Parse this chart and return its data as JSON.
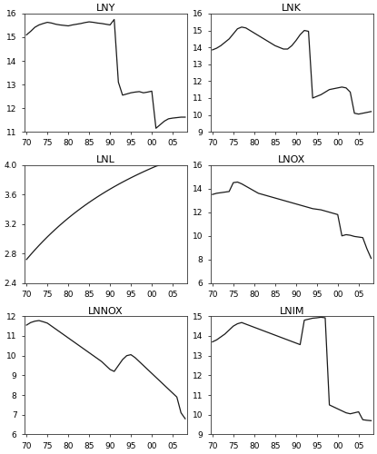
{
  "subplots": [
    {
      "title": "LNY",
      "ylim": [
        11,
        16
      ],
      "yticks": [
        11,
        12,
        13,
        14,
        15,
        16
      ],
      "data_x": [
        70,
        71,
        72,
        73,
        74,
        75,
        76,
        77,
        78,
        79,
        80,
        81,
        82,
        83,
        84,
        85,
        86,
        87,
        88,
        89,
        90,
        91,
        92,
        93,
        94,
        95,
        96,
        97,
        98,
        99,
        100,
        101,
        102,
        103,
        104,
        105,
        106,
        107,
        108
      ],
      "data_y": [
        15.1,
        15.25,
        15.45,
        15.55,
        15.6,
        15.65,
        15.63,
        15.58,
        15.52,
        15.5,
        15.48,
        15.52,
        15.55,
        15.58,
        15.62,
        15.65,
        15.63,
        15.6,
        15.58,
        15.55,
        15.52,
        15.75,
        13.1,
        12.55,
        12.6,
        12.65,
        12.68,
        12.7,
        12.65,
        12.68,
        12.72,
        12.65,
        11.15,
        11.3,
        11.45,
        11.55,
        11.58,
        11.6,
        11.62
      ]
    },
    {
      "title": "LNK",
      "ylim": [
        9,
        16
      ],
      "yticks": [
        9,
        10,
        11,
        12,
        13,
        14,
        15,
        16
      ],
      "data_x": [
        70,
        71,
        72,
        73,
        74,
        75,
        76,
        77,
        78,
        79,
        80,
        81,
        82,
        83,
        84,
        85,
        86,
        87,
        88,
        89,
        90,
        91,
        92,
        93,
        94,
        95,
        96,
        97,
        98,
        99,
        100,
        101,
        102,
        103,
        104,
        105,
        106,
        107,
        108
      ],
      "data_y": [
        13.85,
        13.95,
        14.1,
        14.3,
        14.5,
        15.1,
        15.2,
        15.1,
        14.95,
        14.8,
        14.65,
        14.5,
        14.35,
        14.2,
        14.05,
        13.95,
        14.05,
        14.15,
        14.3,
        14.45,
        14.6,
        15.0,
        14.95,
        11.0,
        11.1,
        11.2,
        11.35,
        11.5,
        11.55,
        11.6,
        11.65,
        11.6,
        11.55,
        11.3,
        10.1,
        10.05,
        10.1,
        10.15,
        10.2
      ]
    },
    {
      "title": "LNL",
      "ylim": [
        2.4,
        4.0
      ],
      "yticks": [
        2.4,
        2.8,
        3.2,
        3.6,
        4.0
      ],
      "data_x": [
        70,
        71,
        72,
        73,
        74,
        75,
        76,
        77,
        78,
        79,
        80,
        81,
        82,
        83,
        84,
        85,
        86,
        87,
        88,
        89,
        90,
        91,
        92,
        93,
        94,
        95,
        96,
        97,
        98,
        99,
        100,
        101,
        102,
        103,
        104,
        105,
        106,
        107,
        108
      ],
      "data_y": [
        2.72,
        2.75,
        2.79,
        2.83,
        2.88,
        2.93,
        2.98,
        3.03,
        3.08,
        3.13,
        3.18,
        3.23,
        3.28,
        3.33,
        3.38,
        3.43,
        3.48,
        3.53,
        3.57,
        3.61,
        3.65,
        3.68,
        3.71,
        3.74,
        3.77,
        3.8,
        3.83,
        3.86,
        3.88,
        3.9,
        3.92,
        3.94,
        3.96,
        3.97,
        3.975,
        3.98,
        3.982,
        3.984,
        3.986
      ]
    },
    {
      "title": "LNOX",
      "ylim": [
        6,
        16
      ],
      "yticks": [
        6,
        8,
        10,
        12,
        14,
        16
      ],
      "data_x": [
        70,
        71,
        72,
        73,
        74,
        75,
        76,
        77,
        78,
        79,
        80,
        81,
        82,
        83,
        84,
        85,
        86,
        87,
        88,
        89,
        90,
        91,
        92,
        93,
        94,
        95,
        96,
        97,
        98,
        99,
        100,
        101,
        102,
        103,
        104,
        105,
        106,
        107,
        108
      ],
      "data_y": [
        13.5,
        13.6,
        13.7,
        13.8,
        14.3,
        14.5,
        14.55,
        14.4,
        14.2,
        14.0,
        13.8,
        13.6,
        13.4,
        13.2,
        13.0,
        12.8,
        12.6,
        12.4,
        12.3,
        12.2,
        12.1,
        12.0,
        11.9,
        11.8,
        11.7,
        11.6,
        11.5,
        11.4,
        11.3,
        11.2,
        11.1,
        10.0,
        10.1,
        10.05,
        9.95,
        9.9,
        9.85,
        9.0,
        8.1
      ]
    },
    {
      "title": "LNNOX",
      "ylim": [
        6,
        12
      ],
      "yticks": [
        6,
        7,
        8,
        9,
        10,
        11,
        12
      ],
      "data_x": [
        70,
        71,
        72,
        73,
        74,
        75,
        76,
        77,
        78,
        79,
        80,
        81,
        82,
        83,
        84,
        85,
        86,
        87,
        88,
        89,
        90,
        91,
        92,
        93,
        94,
        95,
        96,
        97,
        98,
        99,
        100,
        101,
        102,
        103,
        104,
        105,
        106,
        107,
        108
      ],
      "data_y": [
        11.55,
        11.68,
        11.75,
        11.78,
        11.72,
        11.6,
        11.45,
        11.3,
        11.15,
        11.0,
        10.85,
        10.7,
        10.55,
        10.4,
        10.25,
        10.1,
        9.95,
        9.8,
        9.65,
        9.5,
        9.35,
        9.2,
        9.5,
        9.8,
        10.0,
        10.05,
        9.9,
        9.7,
        9.5,
        9.3,
        9.1,
        8.9,
        8.7,
        8.5,
        8.3,
        8.1,
        7.9,
        7.1,
        6.8
      ]
    },
    {
      "title": "LNIM",
      "ylim": [
        9,
        15
      ],
      "yticks": [
        9,
        10,
        11,
        12,
        13,
        14,
        15
      ],
      "data_x": [
        70,
        71,
        72,
        73,
        74,
        75,
        76,
        77,
        78,
        79,
        80,
        81,
        82,
        83,
        84,
        85,
        86,
        87,
        88,
        89,
        90,
        91,
        92,
        93,
        94,
        95,
        96,
        97,
        98,
        99,
        100,
        101,
        102,
        103,
        104,
        105,
        106,
        107,
        108
      ],
      "data_y": [
        13.7,
        13.8,
        13.95,
        14.1,
        14.3,
        14.5,
        14.6,
        14.65,
        14.55,
        14.45,
        14.35,
        14.25,
        14.15,
        14.1,
        14.05,
        13.95,
        13.85,
        13.75,
        13.65,
        13.55,
        13.45,
        13.38,
        14.8,
        14.85,
        14.9,
        14.92,
        14.95,
        10.5,
        10.4,
        10.3,
        10.2,
        10.1,
        10.05,
        10.1,
        10.15,
        9.75,
        9.72,
        9.7,
        9.68
      ]
    }
  ],
  "xtick_vals": [
    70,
    75,
    80,
    85,
    90,
    95,
    100,
    105
  ],
  "xticklabels": [
    "70",
    "75",
    "80",
    "85",
    "90",
    "95",
    "00",
    "05"
  ],
  "xlim": [
    69,
    109
  ],
  "line_color": "#1a1a1a",
  "line_width": 0.9,
  "bg_color": "#ffffff",
  "tick_fontsize": 6.5,
  "title_fontsize": 8
}
